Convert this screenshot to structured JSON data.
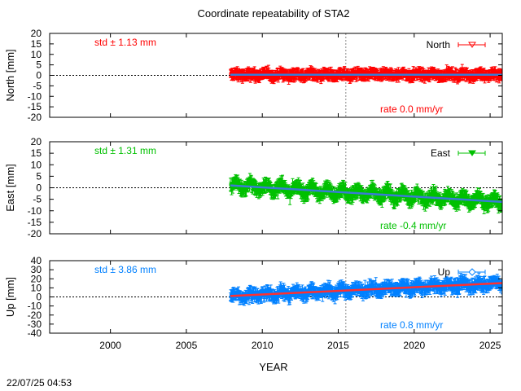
{
  "chart_data": {
    "type": "scatter",
    "title": "Coordinate repeatability of STA2",
    "xlabel": "YEAR",
    "xlim": [
      1996,
      2025.8
    ],
    "x_ticks": [
      2000,
      2005,
      2010,
      2015,
      2020,
      2025
    ],
    "x_tick_labels": [
      "2000",
      "2005",
      "2010",
      "2015",
      "2020",
      "2025"
    ],
    "data_start": 2007.9,
    "data_end": 2025.8,
    "vertical_marker": 2015.5,
    "timestamp": "22/07/25 04:53",
    "panels": [
      {
        "component": "North",
        "ylabel": "North [mm]",
        "legend": "North",
        "ylim": [
          -20,
          20
        ],
        "y_ticks": [
          -20,
          -15,
          -10,
          -5,
          0,
          5,
          10,
          15,
          20
        ],
        "y_tick_labels": [
          "-20",
          "-15",
          "-10",
          "-5",
          "0",
          "5",
          "10",
          "15",
          "20"
        ],
        "std_text": "std ± 1.13 mm",
        "rate_text": "rate  0.0 mm/yr",
        "std_mm": 1.13,
        "rate_mm_per_yr": 0.0,
        "start_value": 0.3,
        "error_bar_mm": 2.2,
        "color": "#ff0000",
        "trend_color": "#3a7bd5"
      },
      {
        "component": "East",
        "ylabel": "East [mm]",
        "legend": "East",
        "ylim": [
          -20,
          20
        ],
        "y_ticks": [
          -20,
          -15,
          -10,
          -5,
          0,
          5,
          10,
          15,
          20
        ],
        "y_tick_labels": [
          "-20",
          "-15",
          "-10",
          "-5",
          "0",
          "5",
          "10",
          "15",
          "20"
        ],
        "std_text": "std ± 1.31 mm",
        "rate_text": "rate -0.4 mm/yr",
        "std_mm": 1.31,
        "rate_mm_per_yr": -0.4,
        "start_value": 1.0,
        "error_bar_mm": 2.5,
        "color": "#00c000",
        "trend_color": "#3a7bd5"
      },
      {
        "component": "Up",
        "ylabel": "Up [mm]",
        "legend": "Up",
        "ylim": [
          -40,
          40
        ],
        "y_ticks": [
          -40,
          -30,
          -20,
          -10,
          0,
          10,
          20,
          30,
          40
        ],
        "y_tick_labels": [
          "-40",
          "-30",
          "-20",
          "-10",
          "0",
          "10",
          "20",
          "30",
          "40"
        ],
        "std_text": "std ± 3.86 mm",
        "rate_text": "rate  0.8 mm/yr",
        "std_mm": 3.86,
        "rate_mm_per_yr": 0.8,
        "start_value": 1.0,
        "error_bar_mm": 5.5,
        "color": "#0080ff",
        "trend_color": "#ff3030"
      }
    ]
  }
}
